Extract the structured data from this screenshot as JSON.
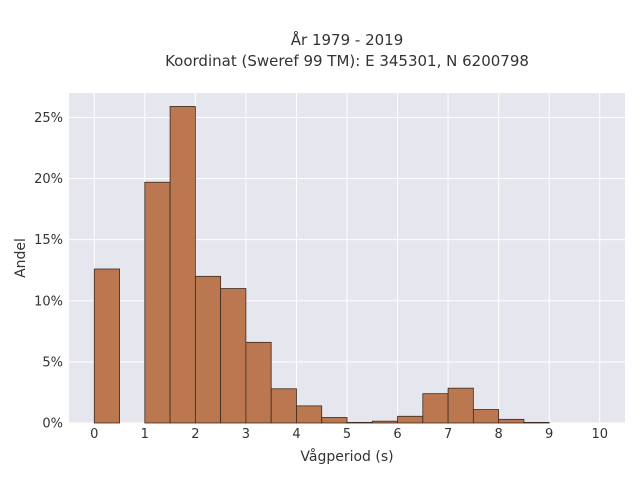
{
  "chart_data": {
    "type": "bar",
    "title_line1": "År 1979 - 2019",
    "title_line2": "Koordinat (Sweref 99 TM): E 345301, N 6200798",
    "xlabel": "Vågperiod (s)",
    "ylabel": "Andel",
    "xlim": [
      -0.5,
      10.5
    ],
    "ylim": [
      0,
      27
    ],
    "x_ticks": [
      0,
      1,
      2,
      3,
      4,
      5,
      6,
      7,
      8,
      9,
      10
    ],
    "y_ticks": [
      0,
      5,
      10,
      15,
      20,
      25
    ],
    "y_tick_labels": [
      "0%",
      "5%",
      "10%",
      "15%",
      "20%",
      "25%"
    ],
    "bin_width": 0.5,
    "bins": [
      {
        "start": 0.0,
        "value": 12.6
      },
      {
        "start": 1.0,
        "value": 19.7
      },
      {
        "start": 1.5,
        "value": 25.9
      },
      {
        "start": 2.0,
        "value": 12.0
      },
      {
        "start": 2.5,
        "value": 11.0
      },
      {
        "start": 3.0,
        "value": 6.6
      },
      {
        "start": 3.5,
        "value": 2.8
      },
      {
        "start": 4.0,
        "value": 1.4
      },
      {
        "start": 4.5,
        "value": 0.45
      },
      {
        "start": 5.0,
        "value": 0.05
      },
      {
        "start": 5.5,
        "value": 0.15
      },
      {
        "start": 6.0,
        "value": 0.55
      },
      {
        "start": 6.5,
        "value": 2.4
      },
      {
        "start": 7.0,
        "value": 2.85
      },
      {
        "start": 7.5,
        "value": 1.1
      },
      {
        "start": 8.0,
        "value": 0.3
      },
      {
        "start": 8.5,
        "value": 0.05
      }
    ],
    "bar_color": "#bb7850",
    "plot_bg": "#e6e6ef",
    "grid": true
  }
}
